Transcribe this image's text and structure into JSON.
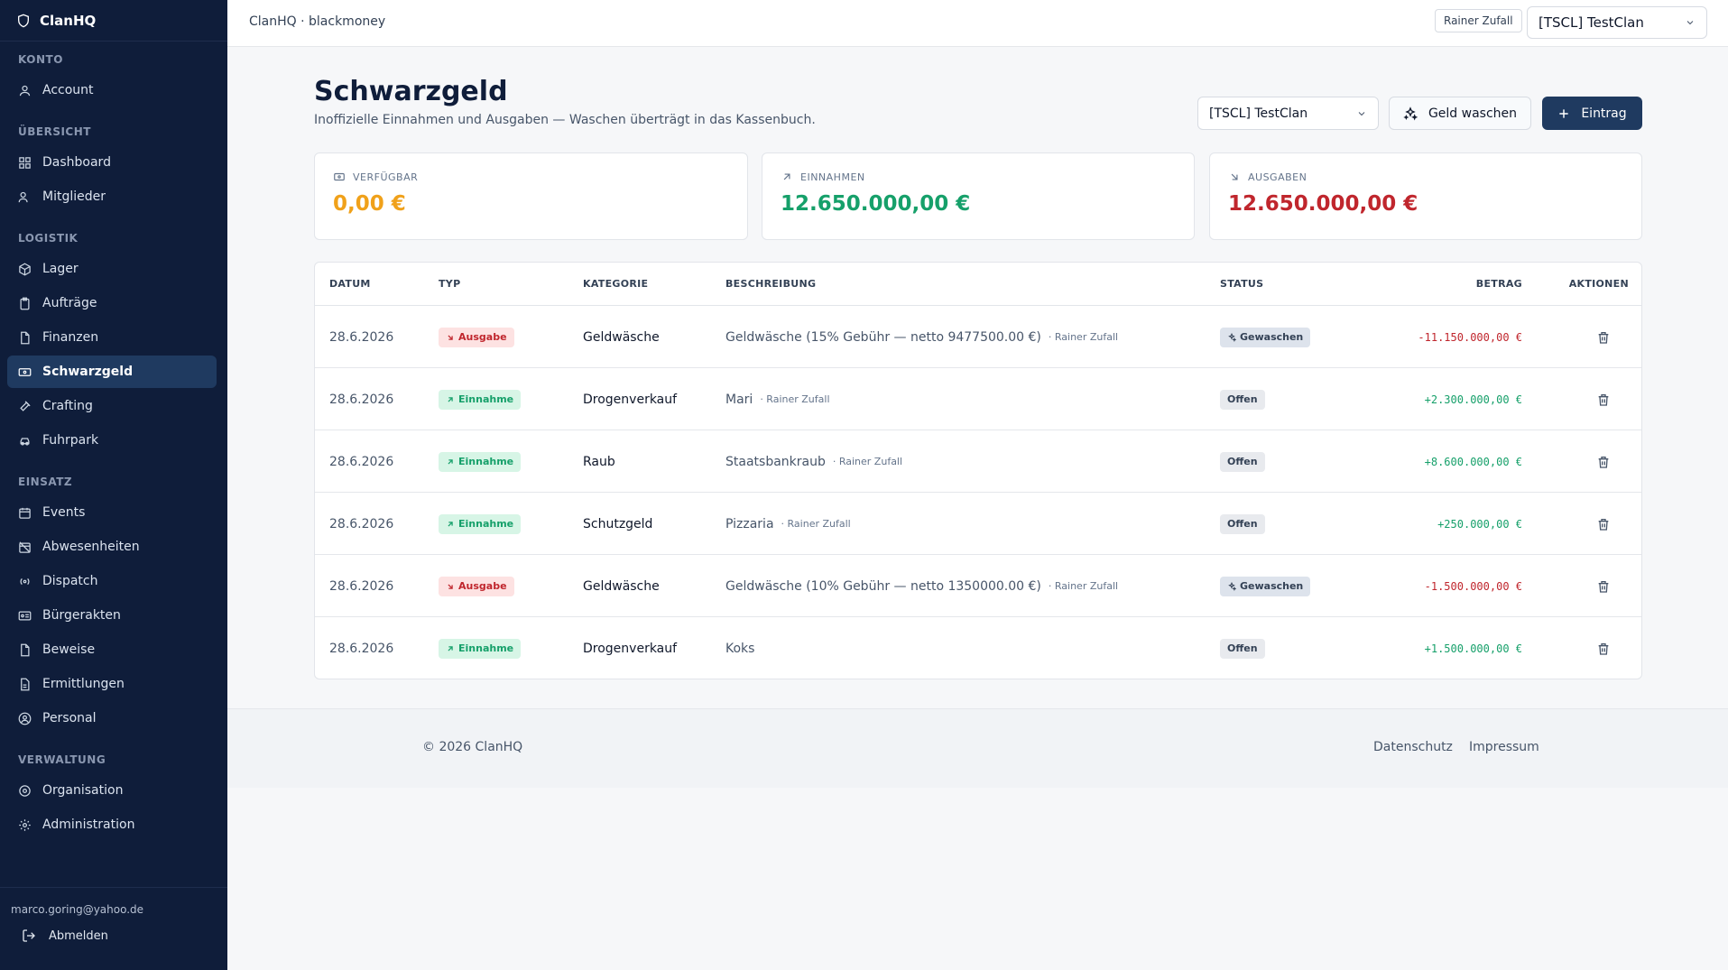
{
  "brand": {
    "name": "ClanHQ"
  },
  "sidebar": {
    "sections": [
      {
        "title": "KONTO",
        "items": [
          {
            "label": "Account",
            "icon": "user-icon"
          }
        ]
      },
      {
        "title": "ÜBERSICHT",
        "items": [
          {
            "label": "Dashboard",
            "icon": "grid-icon"
          },
          {
            "label": "Mitglieder",
            "icon": "users-icon"
          }
        ]
      },
      {
        "title": "LOGISTIK",
        "items": [
          {
            "label": "Lager",
            "icon": "box-icon"
          },
          {
            "label": "Aufträge",
            "icon": "clipboard-icon"
          },
          {
            "label": "Finanzen",
            "icon": "file-icon"
          },
          {
            "label": "Schwarzgeld",
            "icon": "banknote-icon",
            "active": true
          },
          {
            "label": "Crafting",
            "icon": "hammer-icon"
          },
          {
            "label": "Fuhrpark",
            "icon": "car-icon"
          }
        ]
      },
      {
        "title": "EINSATZ",
        "items": [
          {
            "label": "Events",
            "icon": "calendar-icon"
          },
          {
            "label": "Abwesenheiten",
            "icon": "calendar-off-icon"
          },
          {
            "label": "Dispatch",
            "icon": "radio-icon"
          },
          {
            "label": "Bürgerakten",
            "icon": "id-card-icon"
          },
          {
            "label": "Beweise",
            "icon": "file-icon"
          },
          {
            "label": "Ermittlungen",
            "icon": "file-text-icon"
          },
          {
            "label": "Personal",
            "icon": "user-circle-icon"
          }
        ]
      },
      {
        "title": "VERWALTUNG",
        "items": [
          {
            "label": "Organisation",
            "icon": "building-icon"
          },
          {
            "label": "Administration",
            "icon": "gear-icon"
          }
        ]
      }
    ],
    "user_email": "marco.goring@yahoo.de",
    "logout_label": "Abmelden"
  },
  "topbar": {
    "title": "ClanHQ · blackmoney",
    "user_chip": "Rainer Zufall",
    "clan_select": "[TSCL] TestClan"
  },
  "page": {
    "title": "Schwarzgeld",
    "subtitle": "Inoffizielle Einnahmen und Ausgaben — Waschen überträgt in das Kassenbuch.",
    "clan_select": "[TSCL] TestClan",
    "wash_label": "Geld waschen",
    "add_label": "Eintrag"
  },
  "stats": [
    {
      "label": "VERFÜGBAR",
      "value": "0,00 €",
      "color": "#f0a11a",
      "icon": "wallet-icon"
    },
    {
      "label": "EINNAHMEN",
      "value": "12.650.000,00 €",
      "color": "#16a06a",
      "icon": "arrow-up-right-icon"
    },
    {
      "label": "AUSGABEN",
      "value": "12.650.000,00 €",
      "color": "#c0262d",
      "icon": "arrow-down-right-icon"
    }
  ],
  "table": {
    "headers": {
      "date": "DATUM",
      "type": "TYP",
      "category": "KATEGORIE",
      "description": "BESCHREIBUNG",
      "status": "STATUS",
      "amount": "BETRAG",
      "actions": "AKTIONEN"
    },
    "rows": [
      {
        "date": "28.6.2026",
        "type": "Ausgabe",
        "kind": "out",
        "category": "Geldwäsche",
        "description": "Geldwäsche (15% Gebühr — netto 9477500.00 €)",
        "user": "· Rainer Zufall",
        "status": "Gewaschen",
        "washed": true,
        "amount": "-11.150.000,00 €"
      },
      {
        "date": "28.6.2026",
        "type": "Einnahme",
        "kind": "in",
        "category": "Drogenverkauf",
        "description": "Mari",
        "user": "· Rainer Zufall",
        "status": "Offen",
        "washed": false,
        "amount": "+2.300.000,00 €"
      },
      {
        "date": "28.6.2026",
        "type": "Einnahme",
        "kind": "in",
        "category": "Raub",
        "description": "Staatsbankraub",
        "user": "· Rainer Zufall",
        "status": "Offen",
        "washed": false,
        "amount": "+8.600.000,00 €"
      },
      {
        "date": "28.6.2026",
        "type": "Einnahme",
        "kind": "in",
        "category": "Schutzgeld",
        "description": "Pizzaria",
        "user": "· Rainer Zufall",
        "status": "Offen",
        "washed": false,
        "amount": "+250.000,00 €"
      },
      {
        "date": "28.6.2026",
        "type": "Ausgabe",
        "kind": "out",
        "category": "Geldwäsche",
        "description": "Geldwäsche (10% Gebühr — netto 1350000.00 €)",
        "user": "· Rainer Zufall",
        "status": "Gewaschen",
        "washed": true,
        "amount": "-1.500.000,00 €"
      },
      {
        "date": "28.6.2026",
        "type": "Einnahme",
        "kind": "in",
        "category": "Drogenverkauf",
        "description": "Koks",
        "user": "",
        "status": "Offen",
        "washed": false,
        "amount": "+1.500.000,00 €"
      }
    ]
  },
  "footer": {
    "copyright": "© 2026 ClanHQ",
    "links": [
      "Datenschutz",
      "Impressum"
    ]
  }
}
